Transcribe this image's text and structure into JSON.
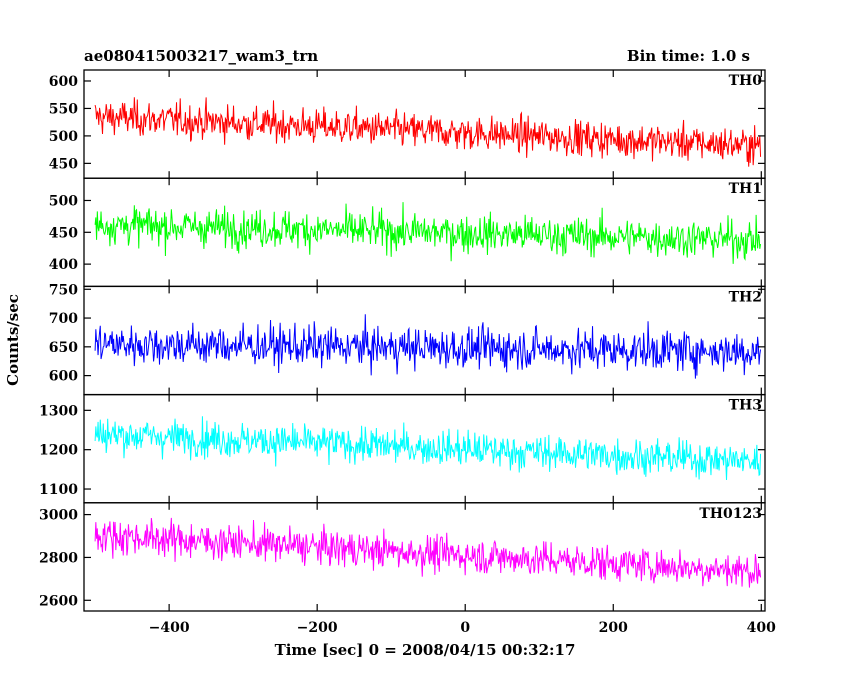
{
  "header": {
    "title": "ae080415003217_wam3_trn",
    "bin_time": "Bin time: 1.0 s"
  },
  "chart_data": {
    "type": "line",
    "title": "ae080415003217_wam3_trn",
    "xlabel": "Time [sec] 0 = 2008/04/15 00:32:17",
    "ylabel": "Counts/sec",
    "xlim": [
      -515,
      405
    ],
    "x_start": -500,
    "x_end": 399,
    "x_step": 1,
    "x_ticks": [
      -400,
      -200,
      0,
      200,
      400
    ],
    "panels": [
      {
        "name": "TH0",
        "color": "#ff0000",
        "ylim": [
          423,
          620
        ],
        "y_ticks": [
          450,
          500,
          550,
          600
        ],
        "trend_start": 535,
        "trend_end": 482,
        "noise": 27
      },
      {
        "name": "TH1",
        "color": "#00ff00",
        "ylim": [
          365,
          535
        ],
        "y_ticks": [
          400,
          450,
          500
        ],
        "trend_start": 462,
        "trend_end": 438,
        "noise": 25
      },
      {
        "name": "TH2",
        "color": "#0000ff",
        "ylim": [
          567,
          755
        ],
        "y_ticks": [
          600,
          650,
          700,
          750
        ],
        "trend_start": 655,
        "trend_end": 642,
        "noise": 30
      },
      {
        "name": "TH3",
        "color": "#00ffff",
        "ylim": [
          1065,
          1340
        ],
        "y_ticks": [
          1100,
          1200,
          1300
        ],
        "trend_start": 1240,
        "trend_end": 1170,
        "noise": 38
      },
      {
        "name": "TH0123",
        "color": "#ff00ff",
        "ylim": [
          2550,
          3055
        ],
        "y_ticks": [
          2600,
          2800,
          3000
        ],
        "trend_start": 2905,
        "trend_end": 2735,
        "noise": 70
      }
    ]
  }
}
